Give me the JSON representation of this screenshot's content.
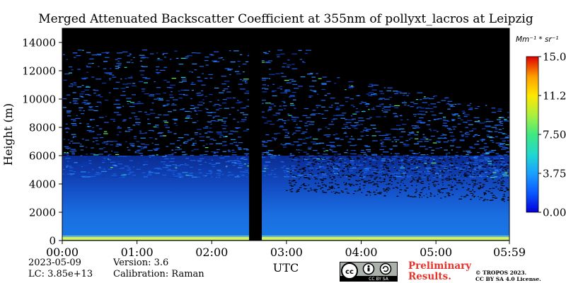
{
  "chart_data": {
    "type": "heatmap",
    "title": "Merged Attenuated Backscatter Coefficient at 355nm of pollyxt_lacros at Leipzig",
    "xlabel": "UTC",
    "ylabel": "Height (m)",
    "x_ticks": [
      "00:00",
      "01:00",
      "02:00",
      "03:00",
      "04:00",
      "05:00",
      "05:59"
    ],
    "x_tick_hours": [
      0,
      1,
      2,
      3,
      4,
      5,
      5.983
    ],
    "xlim_hours": [
      0,
      5.983
    ],
    "y_ticks": [
      0,
      2000,
      4000,
      6000,
      8000,
      10000,
      12000,
      14000
    ],
    "ylim": [
      0,
      15000
    ],
    "colorbar": {
      "unit": "Mm⁻¹ * sr⁻¹",
      "ticks": [
        "0.00",
        "3.75",
        "7.50",
        "11.25",
        "15.00"
      ],
      "range": [
        0,
        15
      ]
    },
    "colormap": [
      "#0000d8",
      "#0a56ff",
      "#1aa0ff",
      "#20d8d0",
      "#40e880",
      "#a8f040",
      "#ffe800",
      "#ffa000",
      "#ff4000",
      "#e00000"
    ],
    "data_gap_hours": [
      2.5,
      2.67
    ],
    "description_levels": {
      "surface_layer_top_m": 250,
      "dense_signal_top_m": 6000,
      "sparse_signal_top_m": 12000
    }
  },
  "footer": {
    "date": "2023-05-09",
    "lc": "LC: 3.85e+13",
    "version": "Version: 3.6",
    "calibration": "Calibration: Raman",
    "preliminary_line1": "Preliminary",
    "preliminary_line2": "Results.",
    "copyright_line1": "© TROPOS 2023.",
    "copyright_line2": "CC BY SA 4.0 License.",
    "license_badge": "CC BY SA"
  }
}
